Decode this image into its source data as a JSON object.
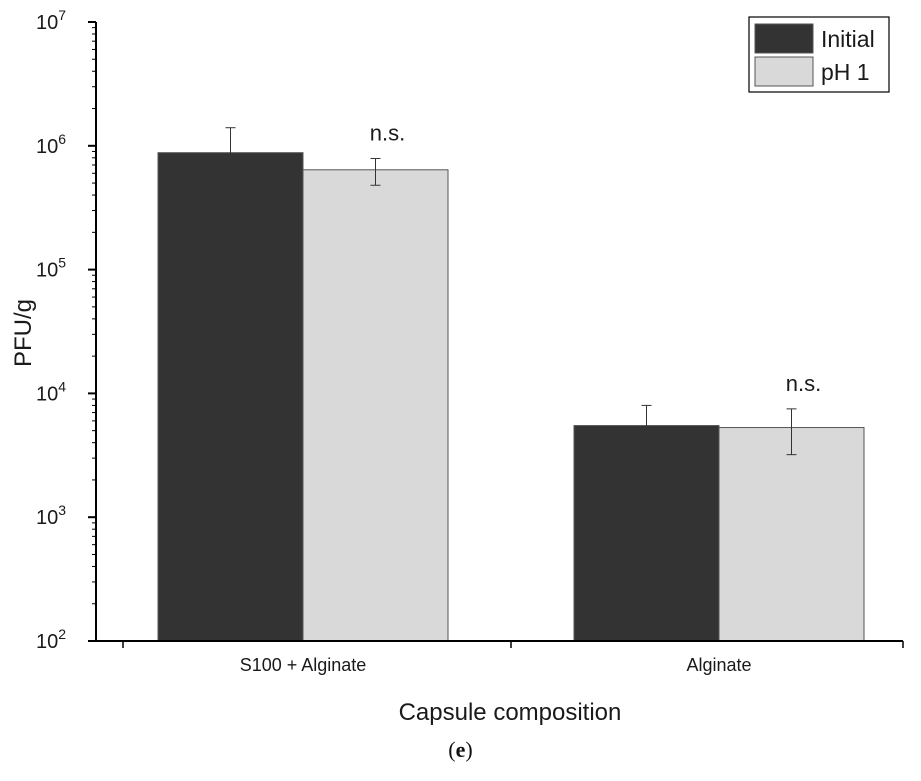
{
  "chart_data": {
    "type": "bar",
    "title": "",
    "xlabel": "Capsule composition",
    "ylabel": "PFU/g",
    "yscale": "log",
    "ylim": [
      100,
      10000000
    ],
    "ytick_values": [
      100,
      1000,
      10000,
      100000,
      1000000,
      10000000
    ],
    "ytick_labels": [
      {
        "base": "10",
        "exp": "2"
      },
      {
        "base": "10",
        "exp": "3"
      },
      {
        "base": "10",
        "exp": "4"
      },
      {
        "base": "10",
        "exp": "5"
      },
      {
        "base": "10",
        "exp": "6"
      },
      {
        "base": "10",
        "exp": "7"
      }
    ],
    "categories": [
      "S100 + Alginate",
      "Alginate"
    ],
    "series": [
      {
        "name": "Initial",
        "color": "#333333",
        "values": [
          880000,
          5500
        ],
        "error_low": [
          380000,
          3100
        ],
        "error_high": [
          1400000,
          8000
        ]
      },
      {
        "name": "pH 1",
        "color": "#d9d9d9",
        "values": [
          640000,
          5300
        ],
        "error_low": [
          480000,
          3200
        ],
        "error_high": [
          790000,
          7500
        ]
      }
    ],
    "annotations": [
      "n.s.",
      "n.s."
    ],
    "legend_position": "top-right",
    "grid": false
  },
  "caption_text": "e"
}
